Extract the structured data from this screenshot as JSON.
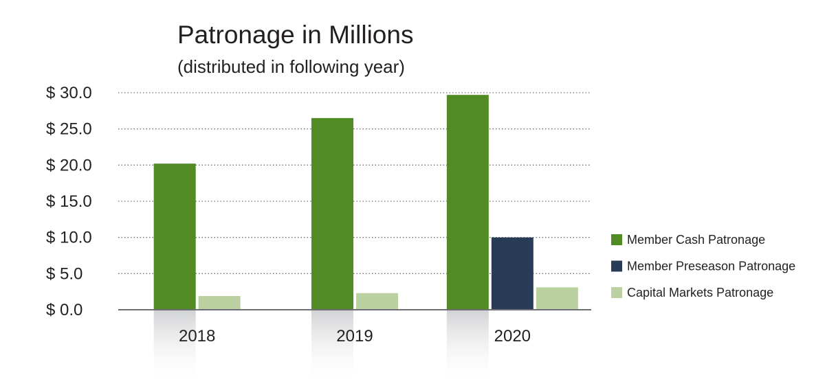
{
  "chart_data": {
    "type": "bar",
    "title": "Patronage in Millions",
    "subtitle": "(distributed in following year)",
    "xlabel": "",
    "ylabel": "",
    "categories": [
      "2018",
      "2019",
      "2020"
    ],
    "ylim": [
      0,
      30
    ],
    "yticks": [
      0,
      5,
      10,
      15,
      20,
      25,
      30
    ],
    "ytick_labels": [
      "$  0.0",
      "$  5.0",
      "$  10.0",
      "$  15.0",
      "$  20.0",
      "$  25.0",
      "$  30.0"
    ],
    "grid": true,
    "legend_position": "right",
    "series": [
      {
        "name": "Member Cash Patronage",
        "color": "#528a24",
        "values": [
          20.2,
          26.5,
          29.7
        ]
      },
      {
        "name": "Member Preseason Patronage",
        "color": "#283c58",
        "values": [
          null,
          null,
          10.0
        ]
      },
      {
        "name": "Capital Markets Patronage",
        "color": "#bcd1a2",
        "values": [
          1.9,
          2.3,
          3.1
        ]
      }
    ]
  }
}
